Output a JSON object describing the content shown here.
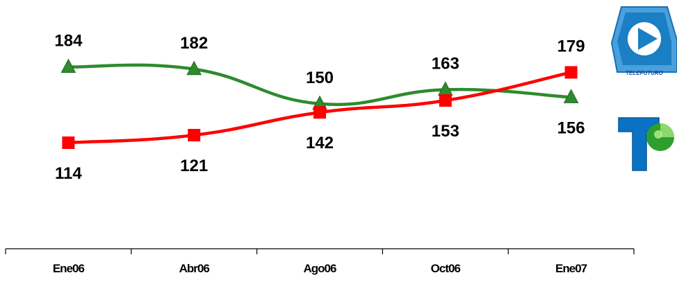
{
  "chart_data": {
    "type": "line",
    "categories": [
      "Ene06",
      "Abr06",
      "Ago06",
      "Oct06",
      "Ene07"
    ],
    "series": [
      {
        "values": [
          184,
          182,
          150,
          163,
          156
        ],
        "color": "#2e8b2e",
        "marker": "triangle",
        "label_position": [
          "above",
          "above",
          "above",
          "above",
          "below"
        ]
      },
      {
        "values": [
          114,
          121,
          142,
          153,
          179
        ],
        "color": "#ff0000",
        "marker": "square",
        "label_position": [
          "below",
          "below",
          "below",
          "below",
          "above"
        ]
      }
    ],
    "xlabel": "",
    "ylabel": "",
    "grid": false,
    "legend": "none",
    "logos": [
      {
        "name": "telefuturo-logo",
        "text": "TELEFUTURO",
        "color": "#1a7fc4"
      },
      {
        "name": "telefe-logo",
        "color": "#0078c8"
      }
    ]
  }
}
